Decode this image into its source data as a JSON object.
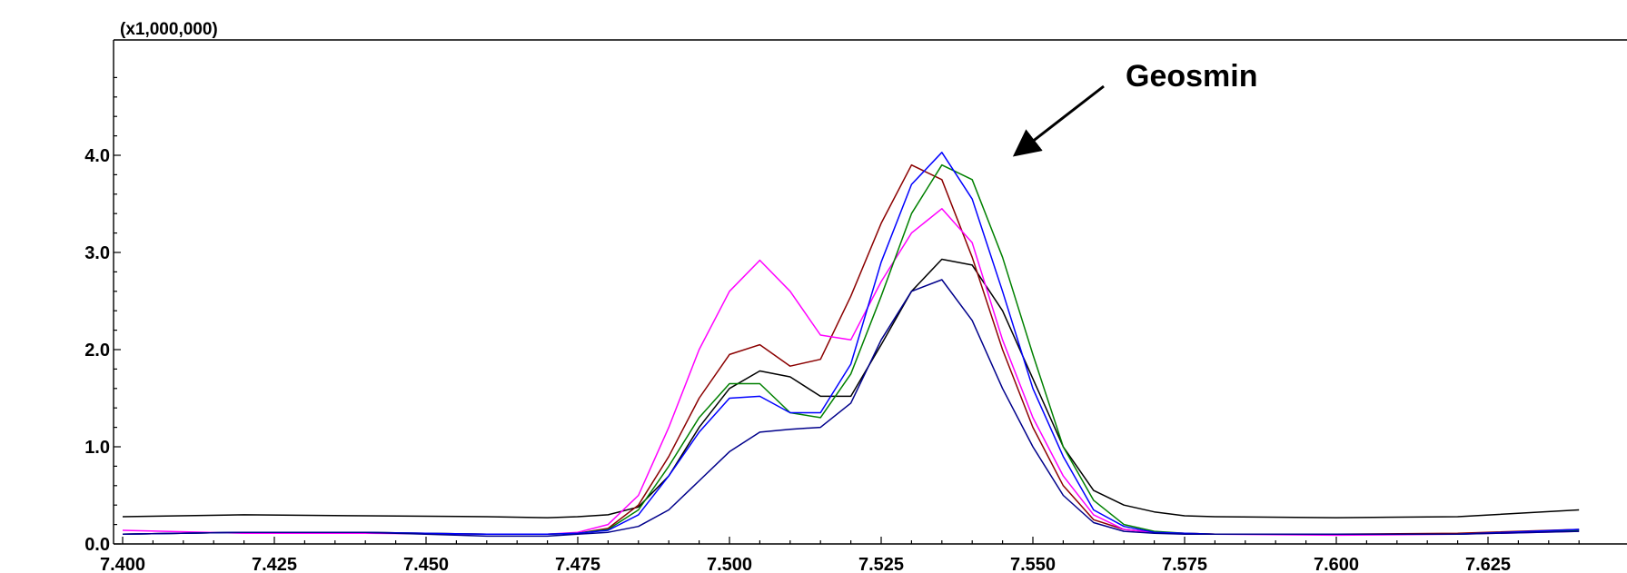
{
  "chart_data": {
    "type": "line",
    "title": "",
    "xlabel": "",
    "ylabel": "",
    "y_scale_label": "(x1,000,000)",
    "xlim": [
      7.4,
      7.64
    ],
    "ylim": [
      0,
      4.0
    ],
    "x_tick_labels": [
      "7.400",
      "7.425",
      "7.450",
      "7.475",
      "7.500",
      "7.525",
      "7.550",
      "7.575",
      "7.600",
      "7.625"
    ],
    "x_ticks": [
      7.4,
      7.425,
      7.45,
      7.475,
      7.5,
      7.525,
      7.55,
      7.575,
      7.6,
      7.625
    ],
    "y_tick_labels": [
      "0.0",
      "1.0",
      "2.0",
      "3.0",
      "4.0"
    ],
    "y_ticks": [
      0,
      1,
      2,
      3,
      4
    ],
    "grid": false,
    "x": [
      7.4,
      7.42,
      7.44,
      7.46,
      7.47,
      7.475,
      7.48,
      7.485,
      7.49,
      7.495,
      7.5,
      7.505,
      7.51,
      7.515,
      7.52,
      7.525,
      7.53,
      7.535,
      7.54,
      7.545,
      7.55,
      7.555,
      7.56,
      7.565,
      7.57,
      7.575,
      7.58,
      7.6,
      7.62,
      7.64
    ],
    "series": [
      {
        "color": "#000000",
        "values": [
          0.28,
          0.3,
          0.29,
          0.28,
          0.27,
          0.28,
          0.3,
          0.38,
          0.7,
          1.2,
          1.6,
          1.78,
          1.72,
          1.52,
          1.52,
          2.05,
          2.6,
          2.93,
          2.87,
          2.4,
          1.7,
          1.0,
          0.55,
          0.4,
          0.33,
          0.29,
          0.28,
          0.27,
          0.28,
          0.35
        ]
      },
      {
        "color": "#8b0000",
        "values": [
          0.1,
          0.12,
          0.12,
          0.1,
          0.1,
          0.11,
          0.16,
          0.4,
          0.9,
          1.5,
          1.95,
          2.05,
          1.83,
          1.9,
          2.55,
          3.3,
          3.9,
          3.75,
          2.95,
          2.0,
          1.2,
          0.6,
          0.25,
          0.15,
          0.12,
          0.11,
          0.1,
          0.1,
          0.11,
          0.15
        ]
      },
      {
        "color": "#ff00ff",
        "values": [
          0.14,
          0.11,
          0.11,
          0.1,
          0.1,
          0.12,
          0.2,
          0.5,
          1.2,
          2.0,
          2.6,
          2.92,
          2.6,
          2.15,
          2.1,
          2.7,
          3.2,
          3.45,
          3.1,
          2.1,
          1.3,
          0.7,
          0.3,
          0.15,
          0.12,
          0.11,
          0.1,
          0.09,
          0.1,
          0.13
        ]
      },
      {
        "color": "#008000",
        "values": [
          0.1,
          0.12,
          0.12,
          0.1,
          0.1,
          0.11,
          0.15,
          0.35,
          0.8,
          1.3,
          1.65,
          1.65,
          1.35,
          1.3,
          1.75,
          2.55,
          3.4,
          3.9,
          3.75,
          2.95,
          1.95,
          1.0,
          0.45,
          0.2,
          0.13,
          0.11,
          0.1,
          0.1,
          0.1,
          0.14
        ]
      },
      {
        "color": "#0000ff",
        "values": [
          0.1,
          0.12,
          0.12,
          0.1,
          0.1,
          0.11,
          0.14,
          0.3,
          0.7,
          1.15,
          1.5,
          1.52,
          1.35,
          1.35,
          1.85,
          2.9,
          3.7,
          4.03,
          3.55,
          2.6,
          1.6,
          0.9,
          0.35,
          0.18,
          0.12,
          0.11,
          0.1,
          0.1,
          0.1,
          0.15
        ]
      },
      {
        "color": "#00008b",
        "values": [
          0.1,
          0.12,
          0.12,
          0.08,
          0.08,
          0.1,
          0.12,
          0.18,
          0.35,
          0.65,
          0.95,
          1.15,
          1.18,
          1.2,
          1.45,
          2.1,
          2.6,
          2.72,
          2.3,
          1.6,
          1.0,
          0.5,
          0.22,
          0.13,
          0.11,
          0.1,
          0.1,
          0.1,
          0.1,
          0.13
        ]
      }
    ],
    "annotations": [
      {
        "text": "Geosmin",
        "arrow_to": [
          7.54,
          3.95
        ]
      }
    ]
  }
}
